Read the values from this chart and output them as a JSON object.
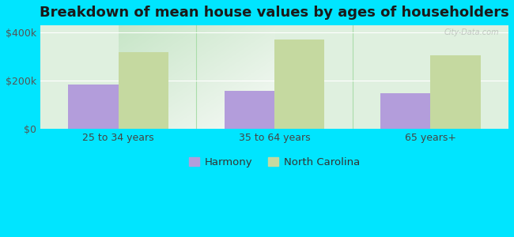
{
  "title": "Breakdown of mean house values by ages of householders",
  "categories": [
    "25 to 34 years",
    "35 to 64 years",
    "65 years+"
  ],
  "harmony_values": [
    185000,
    160000,
    148000
  ],
  "nc_values": [
    318000,
    370000,
    305000
  ],
  "ylim": [
    0,
    430000
  ],
  "ytick_labels": [
    "$0",
    "$200k",
    "$400k"
  ],
  "ytick_values": [
    0,
    200000,
    400000
  ],
  "harmony_color": "#b39ddb",
  "nc_color": "#c5d9a0",
  "background_color": "#00e5ff",
  "plot_bg": "#e8f5e9",
  "legend_harmony": "Harmony",
  "legend_nc": "North Carolina",
  "bar_width": 0.32,
  "title_fontsize": 13,
  "tick_fontsize": 9,
  "legend_fontsize": 9.5
}
